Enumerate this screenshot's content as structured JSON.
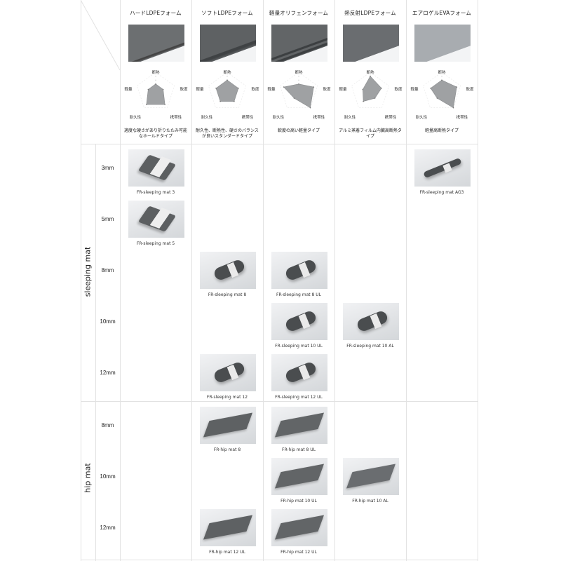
{
  "axes": [
    "断熱",
    "軟度",
    "携帯性",
    "耐久性",
    "軽量"
  ],
  "radar_scale_max": 5,
  "materials": [
    {
      "title": "ハードLDPEフォーム",
      "swatch_color": "#6c6f71",
      "values": [
        2,
        2,
        4,
        4,
        2
      ],
      "description": "適度な硬さがあり折りたたみ可能なホールドタイプ"
    },
    {
      "title": "ソフトLDPEフォーム",
      "swatch_color": "#5e6163",
      "values": [
        3,
        3,
        3,
        3,
        3
      ],
      "description": "耐久性、断熱性、硬さのバランスが良いスタンダードタイプ"
    },
    {
      "title": "軽量オリフェンフォーム",
      "swatch_color": "#626567",
      "values": [
        2,
        4,
        5,
        2,
        4
      ],
      "description": "軟度の高い軽量タイプ"
    },
    {
      "title": "熱反射LDPEフォーム",
      "swatch_color": "#6a6d70",
      "values": [
        4,
        3,
        2,
        3,
        2
      ],
      "description": "アルミ蒸着フィルム内臓高断熱タイプ"
    },
    {
      "title": "エアロゲルEVAフォーム",
      "swatch_color": "#a8acb0",
      "values": [
        3,
        4,
        5,
        2,
        3
      ],
      "description": "軽量高断熱タイプ"
    }
  ],
  "categories": [
    {
      "label": "sleeping mat",
      "sizes": [
        "3mm",
        "5mm",
        "8mm",
        "10mm",
        "12mm"
      ],
      "products": [
        {
          "name": "FR-sleeping mat 3",
          "size": 0,
          "material": 0,
          "shape": "folded"
        },
        {
          "name": "FR-sleeping mat 5",
          "size": 1,
          "material": 0,
          "shape": "folded"
        },
        {
          "name": "FR-sleeping mat AG3",
          "size": 0,
          "material": 4,
          "shape": "thin-roll"
        },
        {
          "name": "FR-sleeping mat 8",
          "size": 2,
          "material": 1,
          "shape": "roll"
        },
        {
          "name": "FR-sleeping mat 12",
          "size": 4,
          "material": 1,
          "shape": "roll"
        },
        {
          "name": "FR-sleeping mat 8 UL",
          "size": 2,
          "material": 2,
          "shape": "roll"
        },
        {
          "name": "FR-sleeping mat 10 UL",
          "size": 3,
          "material": 2,
          "shape": "roll"
        },
        {
          "name": "FR-sleeping mat 12 UL",
          "size": 4,
          "material": 2,
          "shape": "roll"
        },
        {
          "name": "FR-sleeping mat 10 AL",
          "size": 3,
          "material": 3,
          "shape": "roll"
        }
      ]
    },
    {
      "label": "hip mat",
      "sizes": [
        "8mm",
        "10mm",
        "12mm"
      ],
      "products": [
        {
          "name": "FR-hip mat 8",
          "size": 0,
          "material": 1,
          "shape": "flat"
        },
        {
          "name": "FR-hip mat 12 UL",
          "size": 2,
          "material": 1,
          "shape": "flat"
        },
        {
          "name": "FR-hip mat 8 UL",
          "size": 0,
          "material": 2,
          "shape": "flat"
        },
        {
          "name": "FR-hip mat 10 UL",
          "size": 1,
          "material": 2,
          "shape": "flat"
        },
        {
          "name": "FR-hip mat 12 UL",
          "size": 2,
          "material": 2,
          "shape": "flat"
        },
        {
          "name": "FR-hip mat 10 AL",
          "size": 1,
          "material": 3,
          "shape": "flat"
        }
      ]
    }
  ]
}
